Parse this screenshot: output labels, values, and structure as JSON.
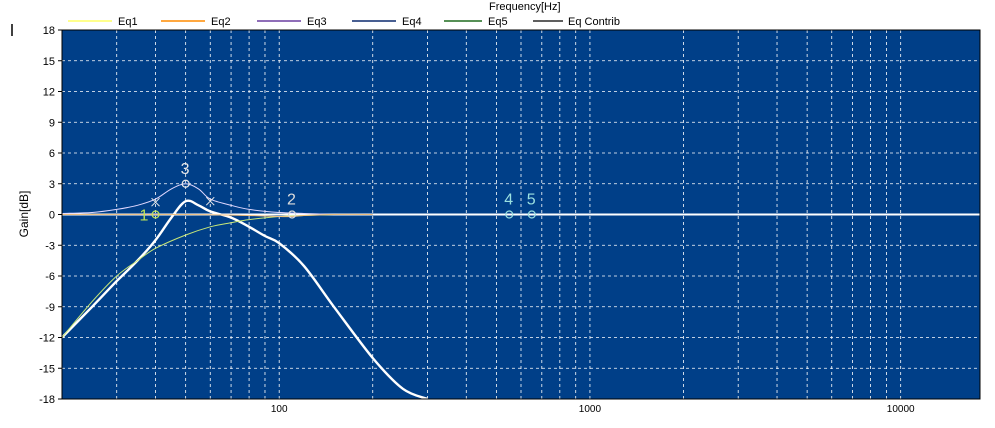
{
  "colors": {
    "plot_background": "#003f88",
    "grid": "#ffffff",
    "eq1": "#ffff66",
    "eq2": "#ff8c00",
    "eq3": "#6a3fa0",
    "eq4": "#0b2a6f",
    "eq5": "#1f6b1f",
    "eq_contrib": "#2a2a2a",
    "band1_marker": "#b8e05a",
    "band2_marker": "#dcdcdc",
    "band3_marker": "#e8e8e8",
    "band45_marker": "#9ae0e0"
  },
  "chart_data": {
    "type": "line",
    "title": "Frequency[Hz]",
    "xlabel": "",
    "ylabel": "Gain[dB]",
    "x_scale": "log",
    "xlim": [
      20,
      18000
    ],
    "ylim": [
      -18,
      18
    ],
    "y_ticks": [
      18,
      15,
      12,
      9,
      6,
      3,
      0,
      -3,
      -6,
      -9,
      -12,
      -15,
      -18
    ],
    "x_tick_labels": [
      {
        "value": 100,
        "label": "100"
      },
      {
        "value": 1000,
        "label": "1000"
      },
      {
        "value": 10000,
        "label": "10000"
      }
    ],
    "grid": true,
    "legend": [
      "Eq1",
      "Eq2",
      "Eq3",
      "Eq4",
      "Eq5",
      "Eq Contrib"
    ],
    "legend_placement": "top",
    "series": [
      {
        "name": "Eq Contrib",
        "x": [
          20,
          25,
          30,
          35,
          40,
          45,
          50,
          55,
          60,
          70,
          80,
          90,
          100,
          120,
          150,
          200,
          250,
          300
        ],
        "y": [
          -12,
          -9,
          -6.5,
          -4.5,
          -2.5,
          -0.3,
          1.3,
          0.9,
          0.3,
          -0.3,
          -1.2,
          -2.1,
          -2.8,
          -5,
          -9,
          -14,
          -17,
          -18
        ]
      },
      {
        "name": "Eq3",
        "x": [
          20,
          25,
          30,
          35,
          40,
          45,
          50,
          55,
          60,
          70,
          80,
          100,
          120,
          150
        ],
        "y": [
          0.1,
          0.2,
          0.5,
          0.9,
          1.5,
          2.5,
          3.0,
          2.5,
          1.5,
          0.9,
          0.5,
          0.2,
          0.1,
          0
        ]
      },
      {
        "name": "Eq1",
        "x": [
          20,
          25,
          30,
          35,
          40,
          50,
          60,
          70,
          80,
          100,
          120,
          150
        ],
        "y": [
          -12,
          -8.5,
          -6,
          -4.5,
          -3.3,
          -2,
          -1.2,
          -0.8,
          -0.5,
          -0.2,
          -0.1,
          0
        ]
      },
      {
        "name": "Eq2",
        "x": [
          20,
          50,
          80,
          100,
          110,
          120,
          150,
          200
        ],
        "y": [
          0,
          0,
          -0.1,
          -0.2,
          -0.2,
          -0.1,
          0,
          0
        ]
      }
    ],
    "band_markers": [
      {
        "label": "1",
        "x": 40,
        "y": 0
      },
      {
        "label": "2",
        "x": 110,
        "y": 0
      },
      {
        "label": "3",
        "x": 50,
        "y": 3
      },
      {
        "label": "4",
        "x": 550,
        "y": 0
      },
      {
        "label": "5",
        "x": 650,
        "y": 0
      }
    ],
    "q_markers": [
      {
        "x": 40,
        "y": 1.2
      },
      {
        "x": 60,
        "y": 1.3
      }
    ]
  }
}
